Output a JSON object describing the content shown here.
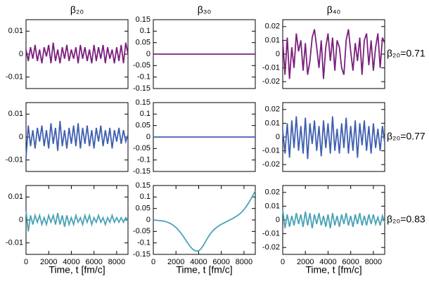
{
  "chart_data": [
    {
      "type": "line",
      "title": "β₂₀",
      "color": "#7b1f7d",
      "xlim": [
        0,
        9000
      ],
      "ylim": [
        -0.015,
        0.015
      ],
      "yticks": [
        -0.01,
        0,
        0.01
      ],
      "x": [
        0,
        200,
        400,
        600,
        800,
        1000,
        1200,
        1400,
        1600,
        1800,
        2000,
        2200,
        2400,
        2600,
        2800,
        3000,
        3200,
        3400,
        3600,
        3800,
        4000,
        4200,
        4400,
        4600,
        4800,
        5000,
        5200,
        5400,
        5600,
        5800,
        6000,
        6200,
        6400,
        6600,
        6800,
        7000,
        7200,
        7400,
        7600,
        7800,
        8000,
        8200,
        8400,
        8600,
        8800,
        9000
      ],
      "values": [
        0.002,
        -0.003,
        0.003,
        -0.002,
        0.004,
        -0.003,
        0.002,
        -0.004,
        0.003,
        -0.001,
        0.004,
        -0.004,
        0.005,
        -0.003,
        0.002,
        -0.004,
        0.003,
        -0.002,
        0.004,
        -0.003,
        0.002,
        -0.002,
        0.003,
        -0.004,
        0.004,
        -0.002,
        0.003,
        -0.003,
        0.002,
        -0.004,
        0.004,
        -0.003,
        0.003,
        -0.002,
        0.004,
        -0.004,
        0.003,
        -0.002,
        0.002,
        -0.004,
        0.003,
        -0.003,
        0.004,
        -0.004,
        0.005,
        0.0
      ]
    },
    {
      "type": "line",
      "title": "β₃₀",
      "color": "#7b1f7d",
      "xlim": [
        0,
        9000
      ],
      "ylim": [
        -0.15,
        0.15
      ],
      "yticks": [
        -0.15,
        -0.1,
        -0.05,
        0,
        0.05,
        0.1,
        0.15
      ],
      "x": [
        0,
        9000
      ],
      "values": [
        0,
        0
      ]
    },
    {
      "type": "line",
      "title": "β₄₀",
      "side_label": "β₂₀=0.71",
      "color": "#7b1f7d",
      "xlim": [
        0,
        9000
      ],
      "ylim": [
        -0.025,
        0.025
      ],
      "yticks": [
        -0.02,
        -0.01,
        0,
        0.01,
        0.02
      ],
      "x": [
        0,
        200,
        400,
        600,
        800,
        1000,
        1200,
        1400,
        1600,
        1800,
        2000,
        2200,
        2400,
        2600,
        2800,
        3000,
        3200,
        3400,
        3600,
        3800,
        4000,
        4200,
        4400,
        4600,
        4800,
        5000,
        5200,
        5400,
        5600,
        5800,
        6000,
        6200,
        6400,
        6600,
        6800,
        7000,
        7200,
        7400,
        7600,
        7800,
        8000,
        8200,
        8400,
        8600,
        8800,
        9000
      ],
      "values": [
        0.01,
        -0.015,
        0.012,
        -0.018,
        0.005,
        -0.01,
        0.015,
        0.002,
        0.01,
        -0.012,
        0.008,
        -0.015,
        -0.005,
        0.012,
        0.018,
        0.005,
        -0.01,
        0.01,
        -0.018,
        0.005,
        0.015,
        -0.005,
        0.012,
        -0.012,
        0.01,
        0.005,
        -0.01,
        -0.015,
        0.01,
        0.018,
        0.002,
        -0.012,
        0.008,
        -0.005,
        0.012,
        -0.015,
        0.01,
        0.015,
        -0.008,
        0.01,
        -0.012,
        0.005,
        0.015,
        -0.01,
        0.012,
        0.008
      ]
    },
    {
      "type": "line",
      "color": "#3f5fb0",
      "xlim": [
        0,
        9000
      ],
      "ylim": [
        -0.015,
        0.015
      ],
      "yticks": [
        -0.01,
        0,
        0.01
      ],
      "x": [
        0,
        200,
        400,
        600,
        800,
        1000,
        1200,
        1400,
        1600,
        1800,
        2000,
        2200,
        2400,
        2600,
        2800,
        3000,
        3200,
        3400,
        3600,
        3800,
        4000,
        4200,
        4400,
        4600,
        4800,
        5000,
        5200,
        5400,
        5600,
        5800,
        6000,
        6200,
        6400,
        6600,
        6800,
        7000,
        7200,
        7400,
        7600,
        7800,
        8000,
        8200,
        8400,
        8600,
        8800,
        9000
      ],
      "values": [
        -0.009,
        0.005,
        -0.004,
        0.003,
        -0.005,
        0.004,
        -0.002,
        0.005,
        -0.004,
        0.003,
        -0.005,
        0.006,
        -0.003,
        0.004,
        -0.006,
        0.007,
        -0.004,
        0.003,
        -0.005,
        0.004,
        -0.003,
        0.005,
        -0.004,
        0.006,
        -0.005,
        0.004,
        -0.003,
        0.005,
        -0.004,
        0.003,
        -0.005,
        0.004,
        -0.002,
        0.005,
        -0.004,
        0.003,
        -0.003,
        0.004,
        -0.005,
        0.003,
        -0.002,
        0.004,
        -0.003,
        0.003,
        -0.002,
        0.001
      ]
    },
    {
      "type": "line",
      "color": "#3f5fb0",
      "xlim": [
        0,
        9000
      ],
      "ylim": [
        -0.15,
        0.15
      ],
      "yticks": [
        -0.15,
        -0.1,
        -0.05,
        0,
        0.05,
        0.1,
        0.15
      ],
      "x": [
        0,
        9000
      ],
      "values": [
        0,
        0
      ]
    },
    {
      "type": "line",
      "side_label": "β₂₀=0.77",
      "color": "#3f5fb0",
      "xlim": [
        0,
        9000
      ],
      "ylim": [
        -0.025,
        0.025
      ],
      "yticks": [
        -0.02,
        -0.01,
        0,
        0.01,
        0.02
      ],
      "x": [
        0,
        200,
        400,
        600,
        800,
        1000,
        1200,
        1400,
        1600,
        1800,
        2000,
        2200,
        2400,
        2600,
        2800,
        3000,
        3200,
        3400,
        3600,
        3800,
        4000,
        4200,
        4400,
        4600,
        4800,
        5000,
        5200,
        5400,
        5600,
        5800,
        6000,
        6200,
        6400,
        6600,
        6800,
        7000,
        7200,
        7400,
        7600,
        7800,
        8000,
        8200,
        8400,
        8600,
        8800,
        9000
      ],
      "values": [
        0.005,
        -0.012,
        0.01,
        -0.015,
        0.012,
        -0.008,
        0.015,
        -0.01,
        0.008,
        -0.012,
        0.014,
        -0.016,
        0.01,
        -0.005,
        0.012,
        -0.01,
        0.008,
        -0.014,
        0.012,
        -0.008,
        0.01,
        -0.012,
        0.015,
        -0.01,
        0.006,
        -0.012,
        0.01,
        -0.008,
        0.014,
        -0.012,
        0.008,
        -0.01,
        0.012,
        -0.015,
        0.01,
        -0.006,
        0.012,
        -0.01,
        0.008,
        -0.012,
        0.01,
        -0.008,
        0.006,
        -0.01,
        0.008,
        -0.004
      ]
    },
    {
      "type": "line",
      "xlabel": "Time, t [fm/c]",
      "color": "#4aa3b8",
      "xlim": [
        0,
        9000
      ],
      "ylim": [
        -0.015,
        0.015
      ],
      "yticks": [
        -0.01,
        0,
        0.01
      ],
      "xticks": [
        0,
        2000,
        4000,
        6000,
        8000
      ],
      "x": [
        0,
        200,
        400,
        600,
        800,
        1000,
        1200,
        1400,
        1600,
        1800,
        2000,
        2200,
        2400,
        2600,
        2800,
        3000,
        3200,
        3400,
        3600,
        3800,
        4000,
        4200,
        4400,
        4600,
        4800,
        5000,
        5200,
        5400,
        5600,
        5800,
        6000,
        6200,
        6400,
        6600,
        6800,
        7000,
        7200,
        7400,
        7600,
        7800,
        8000,
        8200,
        8400,
        8600,
        8800,
        9000
      ],
      "values": [
        0.004,
        -0.005,
        0.002,
        -0.002,
        0.002,
        -0.001,
        0.002,
        -0.002,
        0.001,
        -0.002,
        0.002,
        -0.001,
        0.002,
        -0.002,
        0.003,
        -0.002,
        0.002,
        -0.003,
        0.002,
        -0.002,
        0.001,
        -0.002,
        0.002,
        -0.001,
        0.001,
        -0.002,
        0.002,
        -0.001,
        0.002,
        -0.002,
        0.001,
        -0.001,
        0.002,
        -0.001,
        0.001,
        -0.002,
        0.001,
        -0.001,
        0.002,
        -0.001,
        0.001,
        -0.001,
        0.001,
        -0.001,
        0.001,
        0.0
      ]
    },
    {
      "type": "line",
      "xlabel": "Time, t [fm/c]",
      "color": "#4aa3b8",
      "xlim": [
        0,
        9000
      ],
      "ylim": [
        -0.15,
        0.15
      ],
      "yticks": [
        -0.15,
        -0.1,
        -0.05,
        0,
        0.05,
        0.1,
        0.15
      ],
      "xticks": [
        0,
        2000,
        4000,
        6000,
        8000
      ],
      "x": [
        0,
        200,
        400,
        600,
        800,
        1000,
        1200,
        1400,
        1600,
        1800,
        2000,
        2200,
        2400,
        2600,
        2800,
        3000,
        3200,
        3400,
        3600,
        3800,
        4000,
        4200,
        4400,
        4600,
        4800,
        5000,
        5200,
        5400,
        5600,
        5800,
        6000,
        6200,
        6400,
        6600,
        6800,
        7000,
        7200,
        7400,
        7600,
        7800,
        8000,
        8200,
        8400,
        8600,
        8800,
        9000
      ],
      "values": [
        0,
        -0.001,
        -0.002,
        -0.003,
        -0.004,
        -0.006,
        -0.009,
        -0.013,
        -0.018,
        -0.025,
        -0.033,
        -0.043,
        -0.055,
        -0.068,
        -0.083,
        -0.098,
        -0.112,
        -0.124,
        -0.132,
        -0.136,
        -0.134,
        -0.126,
        -0.112,
        -0.095,
        -0.078,
        -0.063,
        -0.05,
        -0.04,
        -0.032,
        -0.025,
        -0.019,
        -0.014,
        -0.009,
        -0.004,
        0.001,
        0.006,
        0.012,
        0.018,
        0.025,
        0.034,
        0.045,
        0.058,
        0.073,
        0.09,
        0.108,
        0.127
      ]
    },
    {
      "type": "line",
      "xlabel": "Time, t [fm/c]",
      "side_label": "β₂₀=0.83",
      "color": "#4aa3b8",
      "xlim": [
        0,
        9000
      ],
      "ylim": [
        -0.025,
        0.025
      ],
      "yticks": [
        -0.02,
        -0.01,
        0,
        0.01,
        0.02
      ],
      "xticks": [
        0,
        2000,
        4000,
        6000,
        8000
      ],
      "x": [
        0,
        200,
        400,
        600,
        800,
        1000,
        1200,
        1400,
        1600,
        1800,
        2000,
        2200,
        2400,
        2600,
        2800,
        3000,
        3200,
        3400,
        3600,
        3800,
        4000,
        4200,
        4400,
        4600,
        4800,
        5000,
        5200,
        5400,
        5600,
        5800,
        6000,
        6200,
        6400,
        6600,
        6800,
        7000,
        7200,
        7400,
        7600,
        7800,
        8000,
        8200,
        8400,
        8600,
        8800,
        9000
      ],
      "values": [
        0.008,
        -0.006,
        0.004,
        -0.005,
        0.003,
        -0.004,
        0.005,
        -0.003,
        0.004,
        -0.005,
        0.006,
        -0.004,
        0.005,
        -0.006,
        0.004,
        -0.003,
        0.005,
        -0.004,
        0.003,
        -0.005,
        0.004,
        -0.006,
        0.005,
        -0.004,
        0.003,
        -0.005,
        0.004,
        -0.003,
        0.005,
        -0.004,
        0.003,
        -0.005,
        0.004,
        -0.003,
        0.005,
        -0.004,
        0.003,
        -0.004,
        0.004,
        -0.003,
        0.004,
        -0.003,
        0.002,
        -0.004,
        0.003,
        -0.002
      ]
    }
  ]
}
